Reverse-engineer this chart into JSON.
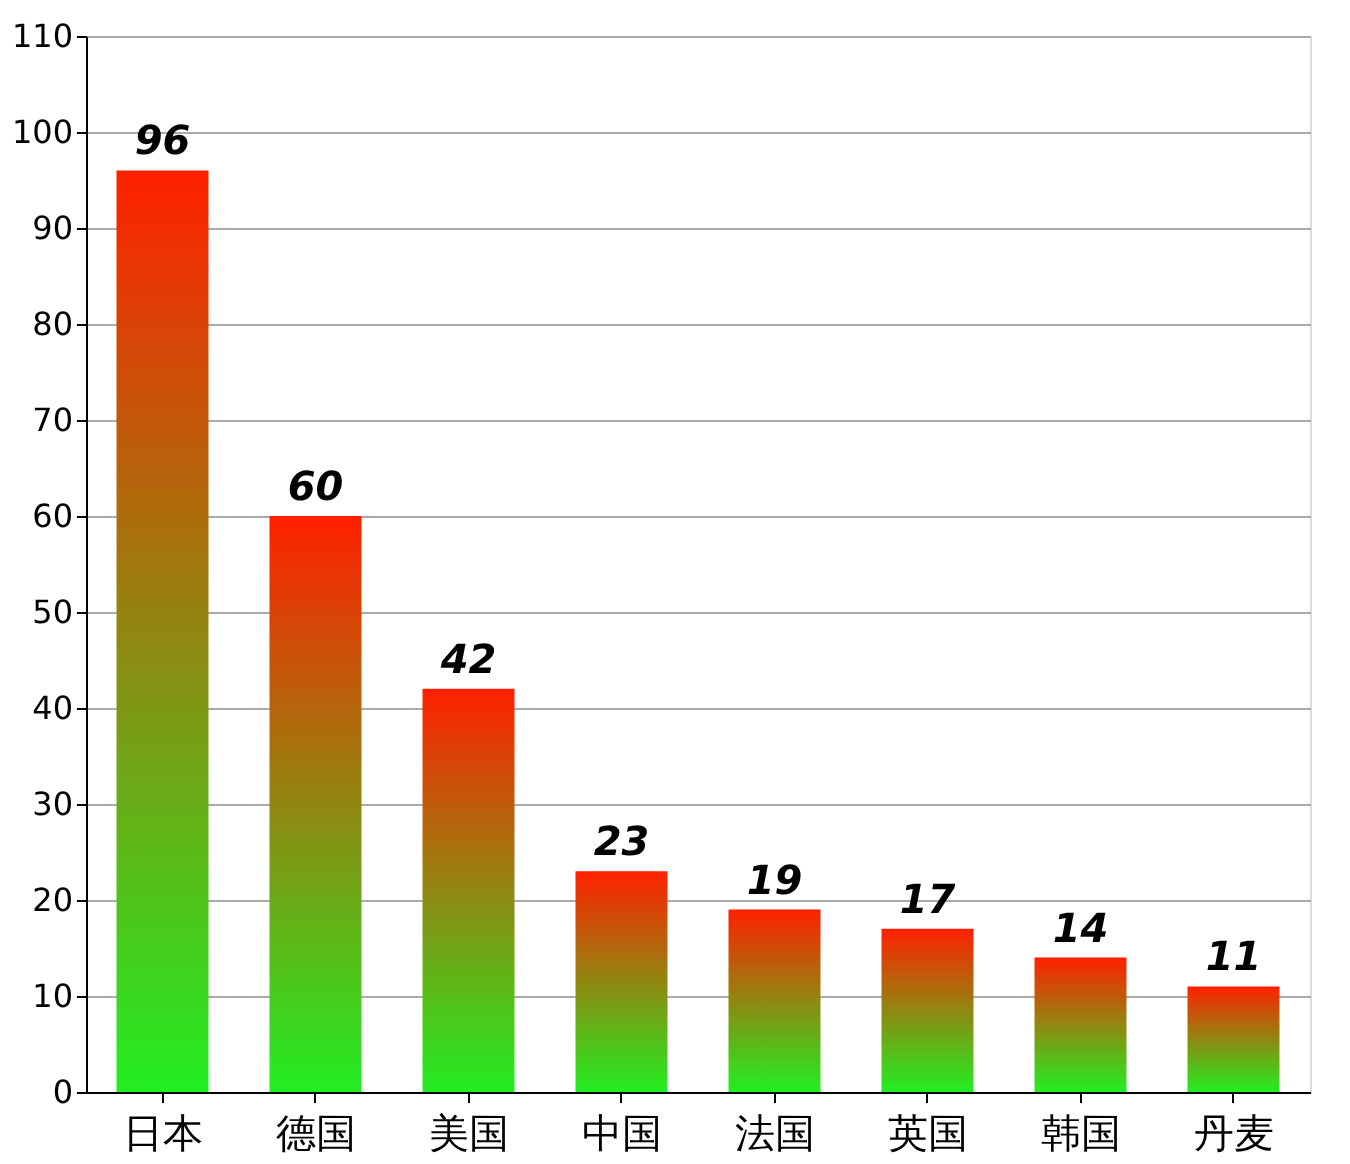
{
  "chart_data": {
    "type": "bar",
    "categories": [
      "日本",
      "德国",
      "美国",
      "中国",
      "法国",
      "英国",
      "韩国",
      "丹麦"
    ],
    "values": [
      96,
      60,
      42,
      23,
      19,
      17,
      14,
      11
    ],
    "color": "#ff2000",
    "ylim": [
      0,
      110
    ],
    "yticks": [
      0,
      10,
      20,
      30,
      40,
      50,
      60,
      70,
      80,
      90,
      100,
      110
    ],
    "grid": "y",
    "data_labels": true
  }
}
